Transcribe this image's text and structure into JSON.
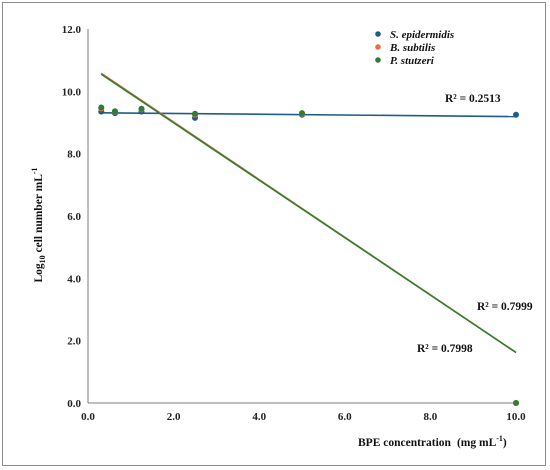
{
  "chart_data": {
    "type": "scatter",
    "xlabel": "BPE concentration",
    "xlabel_unit": "(mg mL",
    "xlabel_unit_sup": "-1",
    "xlabel_unit_close": ")",
    "ylabel_prefix": "Log",
    "ylabel_sub": "10",
    "ylabel_mid": " cell number  mL",
    "ylabel_sup": "-1",
    "xlim": [
      0,
      10
    ],
    "ylim": [
      0,
      12
    ],
    "x_ticks": [
      "0.0",
      "2.0",
      "4.0",
      "6.0",
      "8.0",
      "10.0"
    ],
    "y_ticks": [
      "0.0",
      "2.0",
      "4.0",
      "6.0",
      "8.0",
      "10.0",
      "12.0"
    ],
    "grid": false,
    "legend_position": "top-right",
    "series": [
      {
        "name": "S. epidermidis",
        "color": "#1f5c8a",
        "points": [
          [
            0.31,
            9.35
          ],
          [
            0.63,
            9.3
          ],
          [
            1.25,
            9.35
          ],
          [
            2.5,
            9.15
          ],
          [
            5.0,
            9.25
          ],
          [
            10.0,
            9.25
          ]
        ],
        "trendline": {
          "x": [
            0.31,
            10.0
          ],
          "y": [
            9.31,
            9.19
          ]
        },
        "r2_label": "R² = 0.2513"
      },
      {
        "name": "B. subtilis",
        "color": "#e8703a",
        "points": [
          [
            0.31,
            9.45
          ],
          [
            0.63,
            9.35
          ],
          [
            1.25,
            9.42
          ],
          [
            2.5,
            9.25
          ],
          [
            5.0,
            9.28
          ],
          [
            10.0,
            0.0
          ]
        ],
        "trendline": {
          "x": [
            0.31,
            10.0
          ],
          "y": [
            10.58,
            1.62
          ]
        },
        "r2_label": "R² = 0.7999"
      },
      {
        "name": "P. stutzeri",
        "color": "#2e7d32",
        "points": [
          [
            0.31,
            9.48
          ],
          [
            0.63,
            9.36
          ],
          [
            1.25,
            9.44
          ],
          [
            2.5,
            9.28
          ],
          [
            5.0,
            9.3
          ],
          [
            10.0,
            0.0
          ]
        ],
        "trendline": {
          "x": [
            0.31,
            10.0
          ],
          "y": [
            10.55,
            1.62
          ]
        },
        "r2_label": "R² = 0.7998"
      }
    ]
  }
}
